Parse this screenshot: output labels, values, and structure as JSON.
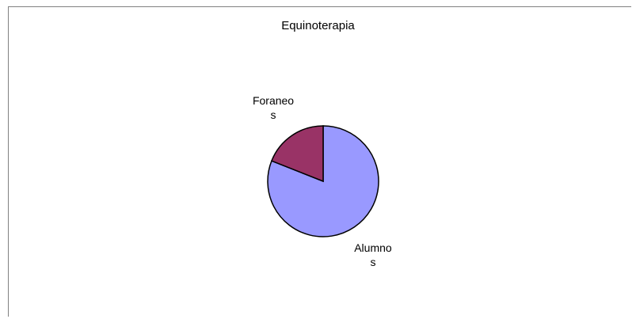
{
  "chart_data": {
    "type": "pie",
    "title": "Equinoterapia",
    "categories": [
      "Alumnos",
      "Foraneos"
    ],
    "values": [
      81,
      19
    ],
    "colors": [
      "#9999ff",
      "#993366"
    ]
  }
}
